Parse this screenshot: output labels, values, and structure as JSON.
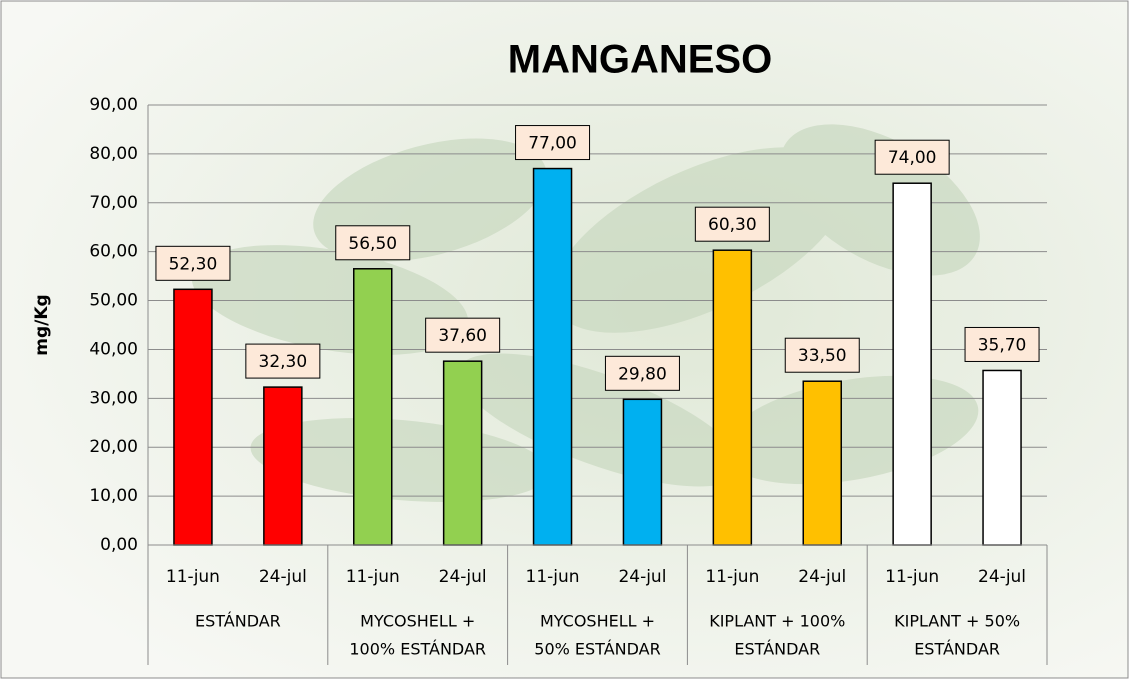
{
  "chart_data": {
    "type": "bar",
    "title": "MANGANESO",
    "y_label": "mg/Kg",
    "categories": [
      "11-jun",
      "24-jul",
      "11-jun",
      "24-jul",
      "11-jun",
      "24-jul",
      "11-jun",
      "24-jul",
      "11-jun",
      "24-jul"
    ],
    "groups": [
      [
        "ESTÁNDAR"
      ],
      [
        "MYCOSHELL +",
        "100% ESTÁNDAR"
      ],
      [
        "MYCOSHELL +",
        "50% ESTÁNDAR"
      ],
      [
        "KIPLANT + 100%",
        "ESTÁNDAR"
      ],
      [
        "KIPLANT + 50%",
        "ESTÁNDAR"
      ]
    ],
    "values": [
      52.3,
      32.3,
      56.5,
      37.6,
      77,
      29.8,
      60.3,
      33.5,
      74,
      35.7
    ],
    "value_labels": [
      "52,30",
      "32,30",
      "56,50",
      "37,60",
      "77,00",
      "29,80",
      "60,30",
      "33,50",
      "74,00",
      "35,70"
    ],
    "colors": [
      "#ff0000",
      "#ff0000",
      "#92d050",
      "#92d050",
      "#00b0f0",
      "#00b0f0",
      "#ffc000",
      "#ffc000",
      "#ffffff",
      "#ffffff"
    ],
    "ylim": [
      0,
      90
    ],
    "yticks": [
      {
        "value": 0,
        "label": "0,00"
      },
      {
        "value": 10,
        "label": "10,00"
      },
      {
        "value": 20,
        "label": "20,00"
      },
      {
        "value": 30,
        "label": "30,00"
      },
      {
        "value": 40,
        "label": "40,00"
      },
      {
        "value": 50,
        "label": "50,00"
      },
      {
        "value": 60,
        "label": "60,00"
      },
      {
        "value": 70,
        "label": "70,00"
      },
      {
        "value": 80,
        "label": "80,00"
      },
      {
        "value": 90,
        "label": "90,00"
      }
    ],
    "grid": true
  }
}
